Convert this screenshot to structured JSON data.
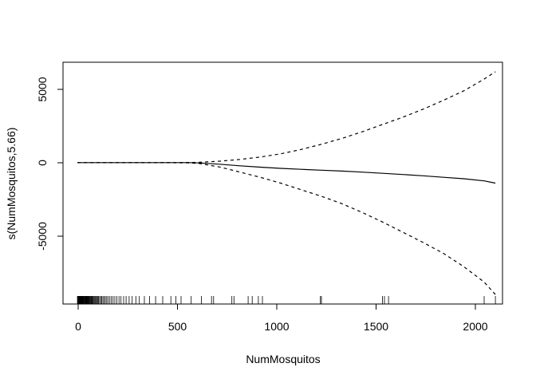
{
  "chart_data": {
    "type": "line",
    "title": "",
    "xlabel": "NumMosquitos",
    "ylabel": "s(NumMosquitos,5.66)",
    "xlim": [
      -70,
      2090
    ],
    "ylim": [
      -9650,
      6850
    ],
    "x_ticks": [
      0,
      500,
      1000,
      1500,
      2000
    ],
    "x_tick_labels": [
      "0",
      "500",
      "1000",
      "1500",
      "2000"
    ],
    "y_ticks": [
      -5000,
      0,
      5000
    ],
    "y_tick_labels": [
      "-5000",
      "0",
      "5000"
    ],
    "grid": false,
    "legend": "none",
    "series": [
      {
        "style": "solid",
        "x": [
          1,
          200,
          400,
          550,
          600,
          700,
          800,
          900,
          1000,
          1100,
          1200,
          1300,
          1400,
          1500,
          1600,
          1700,
          1800,
          1900,
          2000,
          2055
        ],
        "y": [
          0,
          0,
          0,
          0,
          -20,
          -110,
          -220,
          -310,
          -390,
          -460,
          -520,
          -580,
          -650,
          -730,
          -810,
          -900,
          -1000,
          -1100,
          -1250,
          -1400
        ]
      },
      {
        "style": "dashed",
        "x": [
          1,
          200,
          400,
          550,
          600,
          700,
          800,
          900,
          1000,
          1100,
          1200,
          1300,
          1400,
          1500,
          1600,
          1700,
          1800,
          1900,
          2000,
          2055
        ],
        "y": [
          0,
          0,
          0,
          10,
          20,
          100,
          220,
          380,
          600,
          900,
          1250,
          1650,
          2100,
          2600,
          3100,
          3650,
          4250,
          4900,
          5700,
          6200
        ]
      },
      {
        "style": "dashed",
        "x": [
          1,
          200,
          400,
          550,
          600,
          700,
          800,
          900,
          1000,
          1100,
          1200,
          1300,
          1400,
          1500,
          1600,
          1700,
          1800,
          1900,
          2000,
          2055
        ],
        "y": [
          0,
          0,
          0,
          -15,
          -60,
          -300,
          -650,
          -1000,
          -1400,
          -1850,
          -2300,
          -2800,
          -3400,
          -4050,
          -4750,
          -5450,
          -6200,
          -7100,
          -8150,
          -9000
        ]
      }
    ],
    "rug": [
      1,
      2,
      3,
      4,
      5,
      6,
      7,
      8,
      9,
      10,
      11,
      12,
      13,
      14,
      15,
      16,
      17,
      18,
      19,
      20,
      21,
      22,
      23,
      24,
      25,
      26,
      27,
      28,
      29,
      30,
      32,
      34,
      36,
      38,
      40,
      42,
      44,
      46,
      48,
      50,
      53,
      56,
      59,
      62,
      65,
      68,
      71,
      74,
      77,
      80,
      84,
      88,
      92,
      96,
      100,
      105,
      110,
      115,
      120,
      126,
      132,
      138,
      145,
      152,
      160,
      168,
      176,
      185,
      195,
      205,
      215,
      228,
      240,
      255,
      270,
      288,
      305,
      330,
      355,
      385,
      420,
      460,
      485,
      510,
      560,
      610,
      660,
      670,
      760,
      770,
      840,
      860,
      890,
      910,
      1195,
      1200,
      1500,
      1510,
      1530,
      2000,
      2055
    ]
  }
}
